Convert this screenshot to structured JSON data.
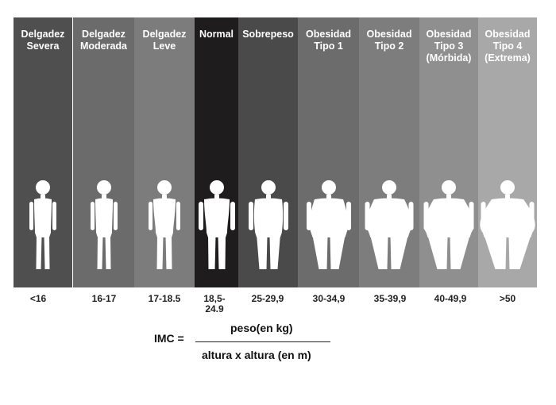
{
  "categories": [
    {
      "id": "delgadez-severa",
      "label": "Delgadez\nSevera",
      "range": "<16",
      "color": "#4f4f4f",
      "shape": "thin"
    },
    {
      "id": "delgadez-moderada",
      "label": "Delgadez\nModerada",
      "range": "16-17",
      "color": "#6b6b6b",
      "shape": "thin"
    },
    {
      "id": "delgadez-leve",
      "label": "Delgadez\nLeve",
      "range": "17-18.5",
      "color": "#7c7c7c",
      "shape": "slim"
    },
    {
      "id": "normal",
      "label": "Normal",
      "range": "18,5-\n24.9",
      "color": "#1f1c1d",
      "shape": "normal"
    },
    {
      "id": "sobrepeso",
      "label": "Sobrepeso",
      "range": "25-29,9",
      "color": "#4a4a4a",
      "shape": "over"
    },
    {
      "id": "obesidad-tipo-1",
      "label": "Obesidad\nTipo 1",
      "range": "30-34,9",
      "color": "#6c6c6c",
      "shape": "obese1"
    },
    {
      "id": "obesidad-tipo-2",
      "label": "Obesidad\nTipo 2",
      "range": "35-39,9",
      "color": "#7d7d7d",
      "shape": "obese2"
    },
    {
      "id": "obesidad-tipo-3",
      "label": "Obesidad\nTipo 3\n(Mórbida)",
      "range": "40-49,9",
      "color": "#8f8f8f",
      "shape": "obese3"
    },
    {
      "id": "obesidad-tipo-4",
      "label": "Obesidad\nTipo 4\n(Extrema)",
      "range": ">50",
      "color": "#a8a8a8",
      "shape": "obese4"
    }
  ],
  "formula": {
    "lhs": "IMC =",
    "numerator": "peso(en kg)",
    "denominator": "altura x altura (en m)"
  }
}
